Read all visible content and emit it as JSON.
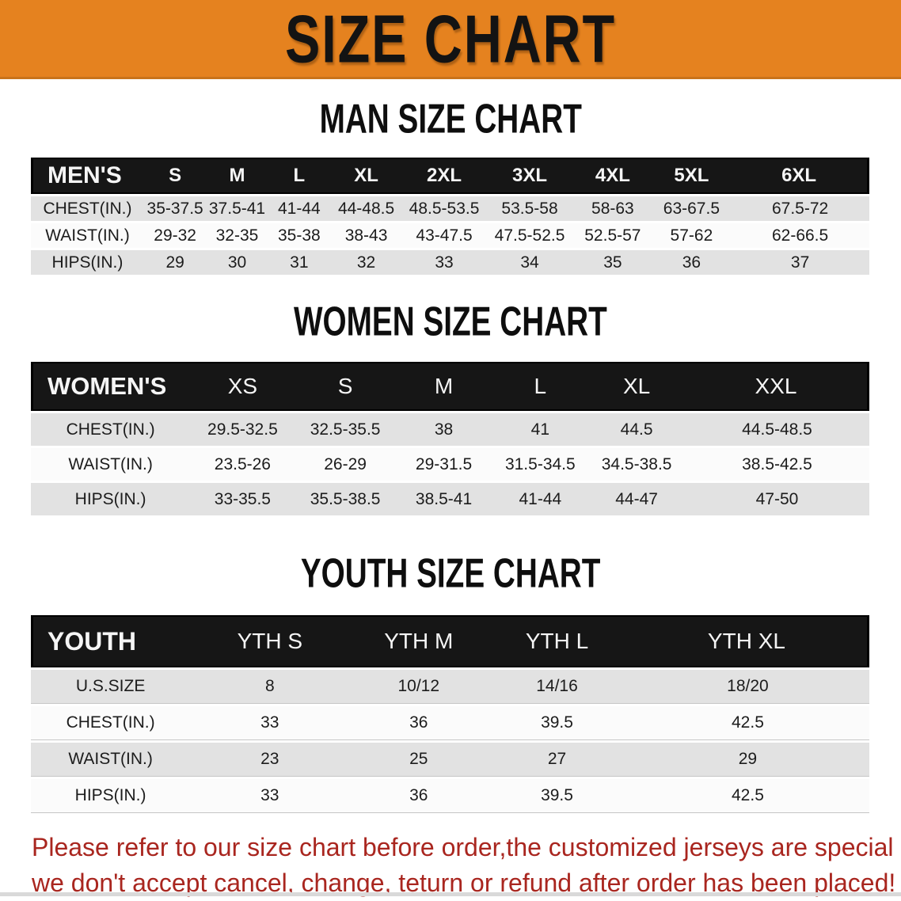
{
  "banner": {
    "title": "SIZE CHART"
  },
  "colors": {
    "banner_bg": "#e5821f",
    "banner_edge": "#c9731a",
    "header_bg": "#161616",
    "row_gray": "#e2e2e2",
    "row_white": "#fbfbfb",
    "note_red": "#a9261f"
  },
  "sections": [
    {
      "heading": "MAN SIZE CHART",
      "table": {
        "header": [
          "MEN'S",
          "S",
          "M",
          "L",
          "XL",
          "2XL",
          "3XL",
          "4XL",
          "5XL",
          "6XL"
        ],
        "rows": [
          {
            "label": "CHEST(IN.)",
            "values": [
              "35-37.5",
              "37.5-41",
              "41-44",
              "44-48.5",
              "48.5-53.5",
              "53.5-58",
              "58-63",
              "63-67.5",
              "67.5-72"
            ]
          },
          {
            "label": "WAIST(IN.)",
            "values": [
              "29-32",
              "32-35",
              "35-38",
              "38-43",
              "43-47.5",
              "47.5-52.5",
              "52.5-57",
              "57-62",
              "62-66.5"
            ]
          },
          {
            "label": "HIPS(IN.)",
            "values": [
              "29",
              "30",
              "31",
              "32",
              "33",
              "34",
              "35",
              "36",
              "37"
            ]
          }
        ]
      }
    },
    {
      "heading": "WOMEN SIZE CHART",
      "table": {
        "header": [
          "WOMEN'S",
          "XS",
          "S",
          "M",
          "L",
          "XL",
          "XXL"
        ],
        "rows": [
          {
            "label": "CHEST(IN.)",
            "values": [
              "29.5-32.5",
              "32.5-35.5",
              "38",
              "41",
              "44.5",
              "44.5-48.5"
            ]
          },
          {
            "label": "WAIST(IN.)",
            "values": [
              "23.5-26",
              "26-29",
              "29-31.5",
              "31.5-34.5",
              "34.5-38.5",
              "38.5-42.5"
            ]
          },
          {
            "label": "HIPS(IN.)",
            "values": [
              "33-35.5",
              "35.5-38.5",
              "38.5-41",
              "41-44",
              "44-47",
              "47-50"
            ]
          }
        ]
      }
    },
    {
      "heading": "YOUTH SIZE CHART",
      "table": {
        "header": [
          "YOUTH",
          "YTH S",
          "YTH M",
          "YTH L",
          "YTH XL"
        ],
        "rows": [
          {
            "label": "U.S.SIZE",
            "values": [
              "8",
              "10/12",
              "14/16",
              "18/20"
            ]
          },
          {
            "label": "CHEST(IN.)",
            "values": [
              "33",
              "36",
              "39.5",
              "42.5"
            ]
          },
          {
            "label": "WAIST(IN.)",
            "values": [
              "23",
              "25",
              "27",
              "29"
            ]
          },
          {
            "label": "HIPS(IN.)",
            "values": [
              "33",
              "36",
              "39.5",
              "42.5"
            ]
          }
        ]
      }
    }
  ],
  "footnote": {
    "line1": "Please refer to our size chart before order,the customized jerseys are special products,",
    "line2": "we don't accept cancel, change, teturn or refund after order has been placed!"
  }
}
